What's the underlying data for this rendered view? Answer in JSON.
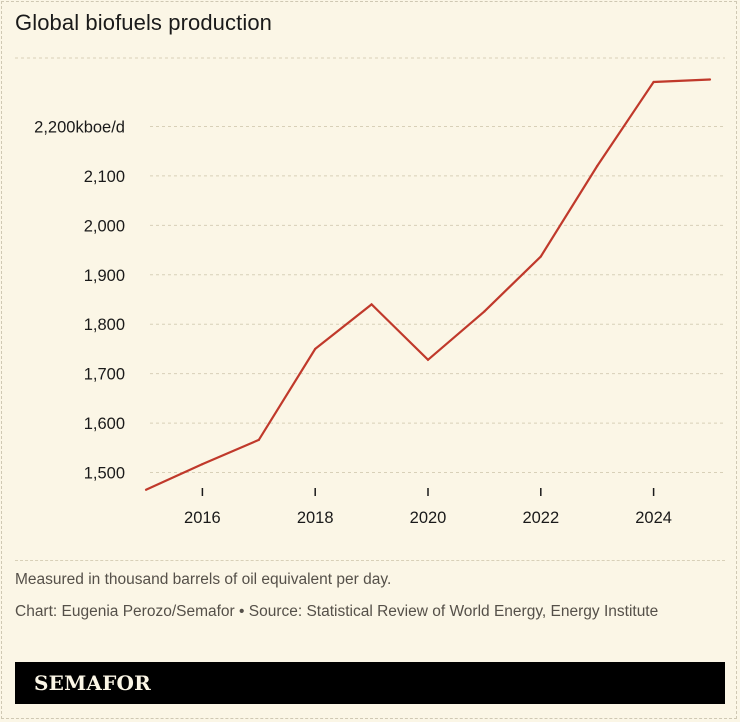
{
  "title": "Global biofuels production",
  "note": "Measured in thousand barrels of oil equivalent per day.",
  "credit": "Chart: Eugenia Perozo/Semafor • Source: Statistical Review of World Energy, Energy Institute",
  "brand": "SEMAFOR",
  "colors": {
    "background": "#fbf6e6",
    "line": "#c0392b",
    "grid": "#d8d0b8",
    "footer": "#000000"
  },
  "chart_data": {
    "type": "line",
    "title": "Global biofuels production",
    "xlabel": "",
    "ylabel": "",
    "x": [
      2015,
      2016,
      2017,
      2018,
      2019,
      2020,
      2021,
      2022,
      2023,
      2024,
      2025
    ],
    "series": [
      {
        "values": [
          1465,
          1517,
          1566,
          1750,
          1840,
          1728,
          1826,
          1937,
          2120,
          2290,
          2295
        ]
      }
    ],
    "ylim": [
      1465,
      2335
    ],
    "yticks": [
      1500,
      1600,
      1700,
      1800,
      1900,
      2000,
      2100,
      2200
    ],
    "ytick_labels": [
      "1,500",
      "1,600",
      "1,700",
      "1,800",
      "1,900",
      "2,000",
      "2,100",
      "2,200kboe/d"
    ],
    "xticks": [
      2016,
      2018,
      2020,
      2022,
      2024
    ],
    "xtick_labels": [
      "2016",
      "2018",
      "2020",
      "2022",
      "2024"
    ],
    "grid": true
  }
}
